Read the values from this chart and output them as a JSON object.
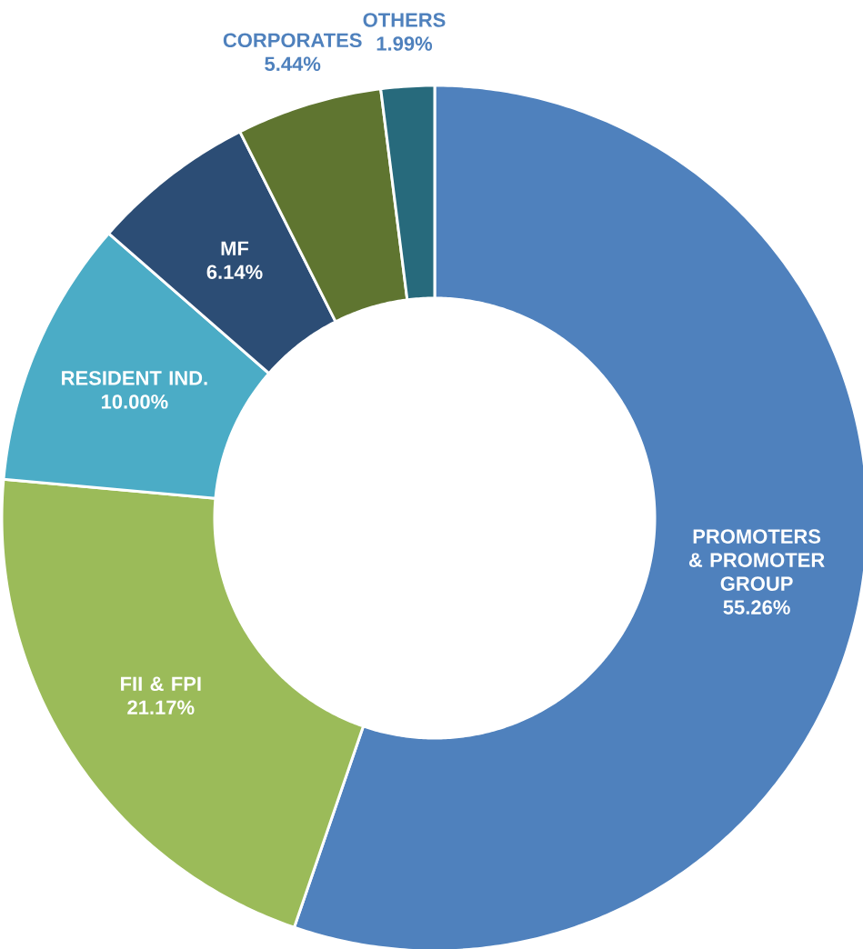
{
  "chart_data": {
    "type": "donut",
    "categories": [
      "PROMOTERS & PROMOTER GROUP",
      "FII & FPI",
      "RESIDENT IND.",
      "MF",
      "CORPORATES",
      "OTHERS"
    ],
    "values": [
      55.26,
      21.17,
      10.0,
      6.14,
      5.44,
      1.99
    ],
    "value_labels": [
      "55.26%",
      "21.17%",
      "10.00%",
      "6.14%",
      "5.44%",
      "1.99%"
    ],
    "colors": [
      "#4f81bd",
      "#9bbb59",
      "#4bacc6",
      "#2c4d75",
      "#5f7530",
      "#276a7c"
    ]
  }
}
